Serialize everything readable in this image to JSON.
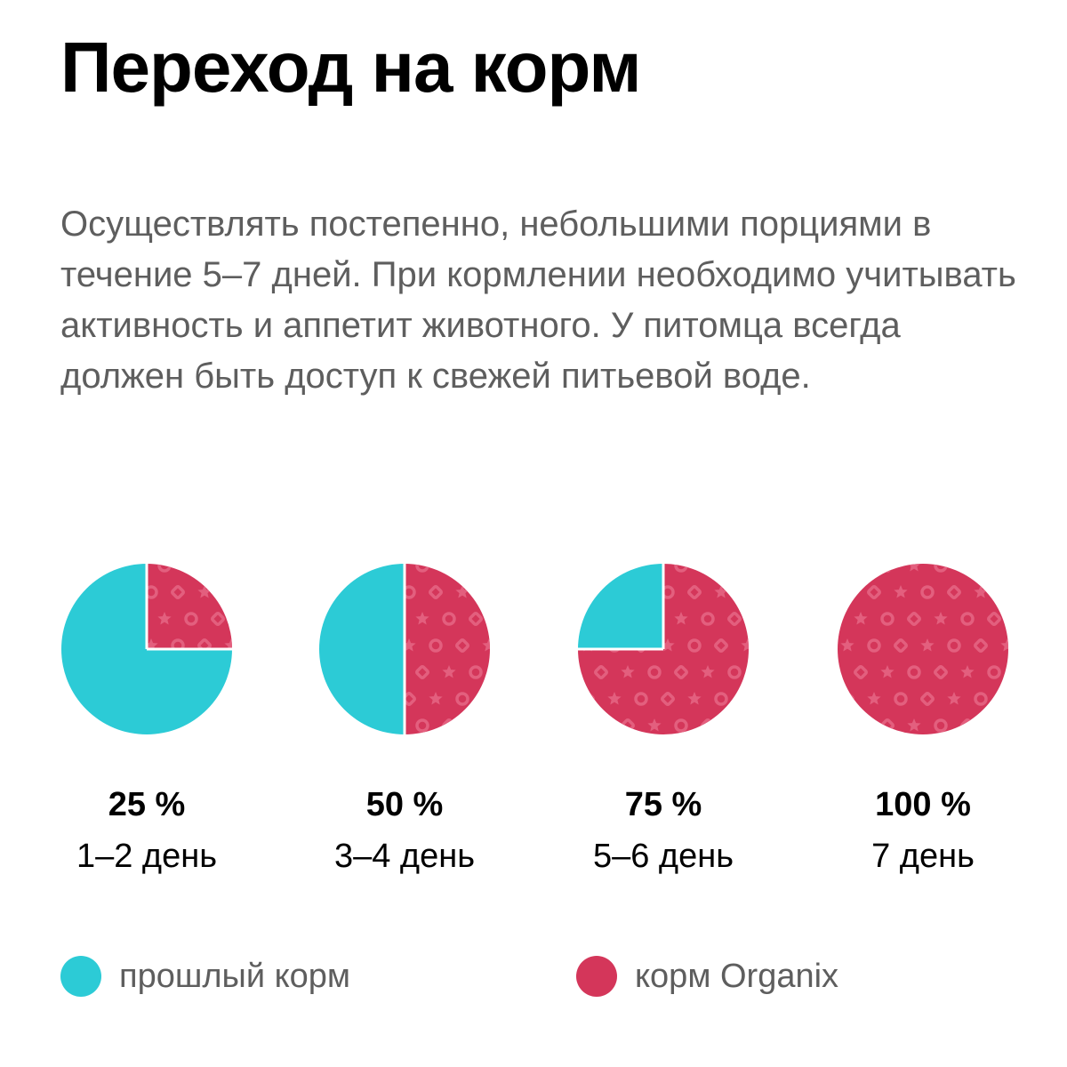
{
  "title": "Переход на корм",
  "description": "Осуществлять постепенно, небольшими порциями в течение 5–7 дней. При кормлении необходимо учитывать активность и аппетит животного. У питомца всегда должен быть доступ к свежей питьевой воде.",
  "colors": {
    "previous_food": "#2ccbd6",
    "organix_food": "#d4365a",
    "pattern": "#e35f7e"
  },
  "chart_data": {
    "type": "pie",
    "charts": [
      {
        "label": "25 %",
        "days": "1–2 день",
        "new_share": 25,
        "old_share": 75
      },
      {
        "label": "50 %",
        "days": "3–4 день",
        "new_share": 50,
        "old_share": 50
      },
      {
        "label": "75 %",
        "days": "5–6 день",
        "new_share": 75,
        "old_share": 25
      },
      {
        "label": "100 %",
        "days": "7 день",
        "new_share": 100,
        "old_share": 0
      }
    ]
  },
  "legend": [
    {
      "label": "прошлый корм",
      "color": "#2ccbd6"
    },
    {
      "label": "корм Organix",
      "color": "#d4365a"
    }
  ]
}
